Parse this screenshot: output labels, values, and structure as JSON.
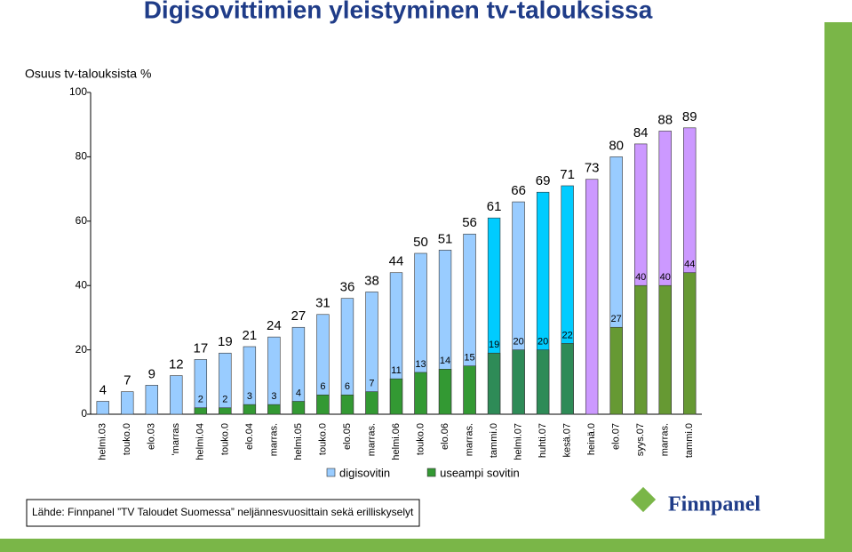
{
  "chart_data": {
    "type": "bar",
    "title": "Digisovittimien yleistyminen tv-talouksissa",
    "ylabel": "Osuus tv-talouksista %",
    "categories": [
      "helmi.03",
      "touko.0",
      "elo.03",
      "'marras",
      "helmi.04",
      "touko.0",
      "elo.04",
      "marras.",
      "helmi.05",
      "touko.0",
      "elo.05",
      "marras.",
      "helmi.06",
      "touko.0",
      "elo.06",
      "marras.",
      "tammi.0",
      "helmi.07",
      "huhti.07",
      "kesä.07",
      "heinä.0",
      "elo.07",
      "syys.07",
      "marras.",
      "tammi.0"
    ],
    "series": [
      {
        "name": "digisovitin",
        "color": "#99ccff",
        "colors": [
          "#99ccff",
          "#99ccff",
          "#99ccff",
          "#99ccff",
          "#99ccff",
          "#99ccff",
          "#99ccff",
          "#99ccff",
          "#99ccff",
          "#99ccff",
          "#99ccff",
          "#99ccff",
          "#99ccff",
          "#99ccff",
          "#99ccff",
          "#99ccff",
          "#00ccff",
          "#99ccff",
          "#00ccff",
          "#00ccff",
          "#cc99ff",
          "#99ccff",
          "#cc99ff",
          "#cc99ff",
          "#cc99ff"
        ],
        "values": [
          4,
          7,
          9,
          12,
          17,
          19,
          21,
          24,
          27,
          31,
          36,
          38,
          44,
          50,
          51,
          56,
          61,
          66,
          69,
          71,
          73,
          80,
          84,
          88,
          89
        ]
      },
      {
        "name": "useampi sovitin",
        "color": "#339933",
        "colors": [
          "#339933",
          "#339933",
          "#339933",
          "#339933",
          "#339933",
          "#339933",
          "#339933",
          "#339933",
          "#339933",
          "#339933",
          "#339933",
          "#339933",
          "#339933",
          "#339933",
          "#339933",
          "#339933",
          "#2e8b57",
          "#2e8b57",
          "#2e8b57",
          "#2e8b57",
          "#669933",
          "#669933",
          "#669933",
          "#669933",
          "#669933"
        ],
        "values": [
          null,
          null,
          null,
          null,
          2,
          2,
          3,
          3,
          4,
          6,
          6,
          7,
          11,
          13,
          14,
          15,
          19,
          20,
          20,
          22,
          null,
          27,
          40,
          40,
          44
        ]
      }
    ],
    "ylim": [
      0,
      100
    ],
    "yticks": [
      0,
      20,
      40,
      60,
      80,
      100
    ],
    "grid": false
  },
  "source": "Lähde: Finnpanel ”TV Taloudet Suomessa” neljännesvuosittain sekä erilliskyselyt",
  "logo": "Finnpanel"
}
